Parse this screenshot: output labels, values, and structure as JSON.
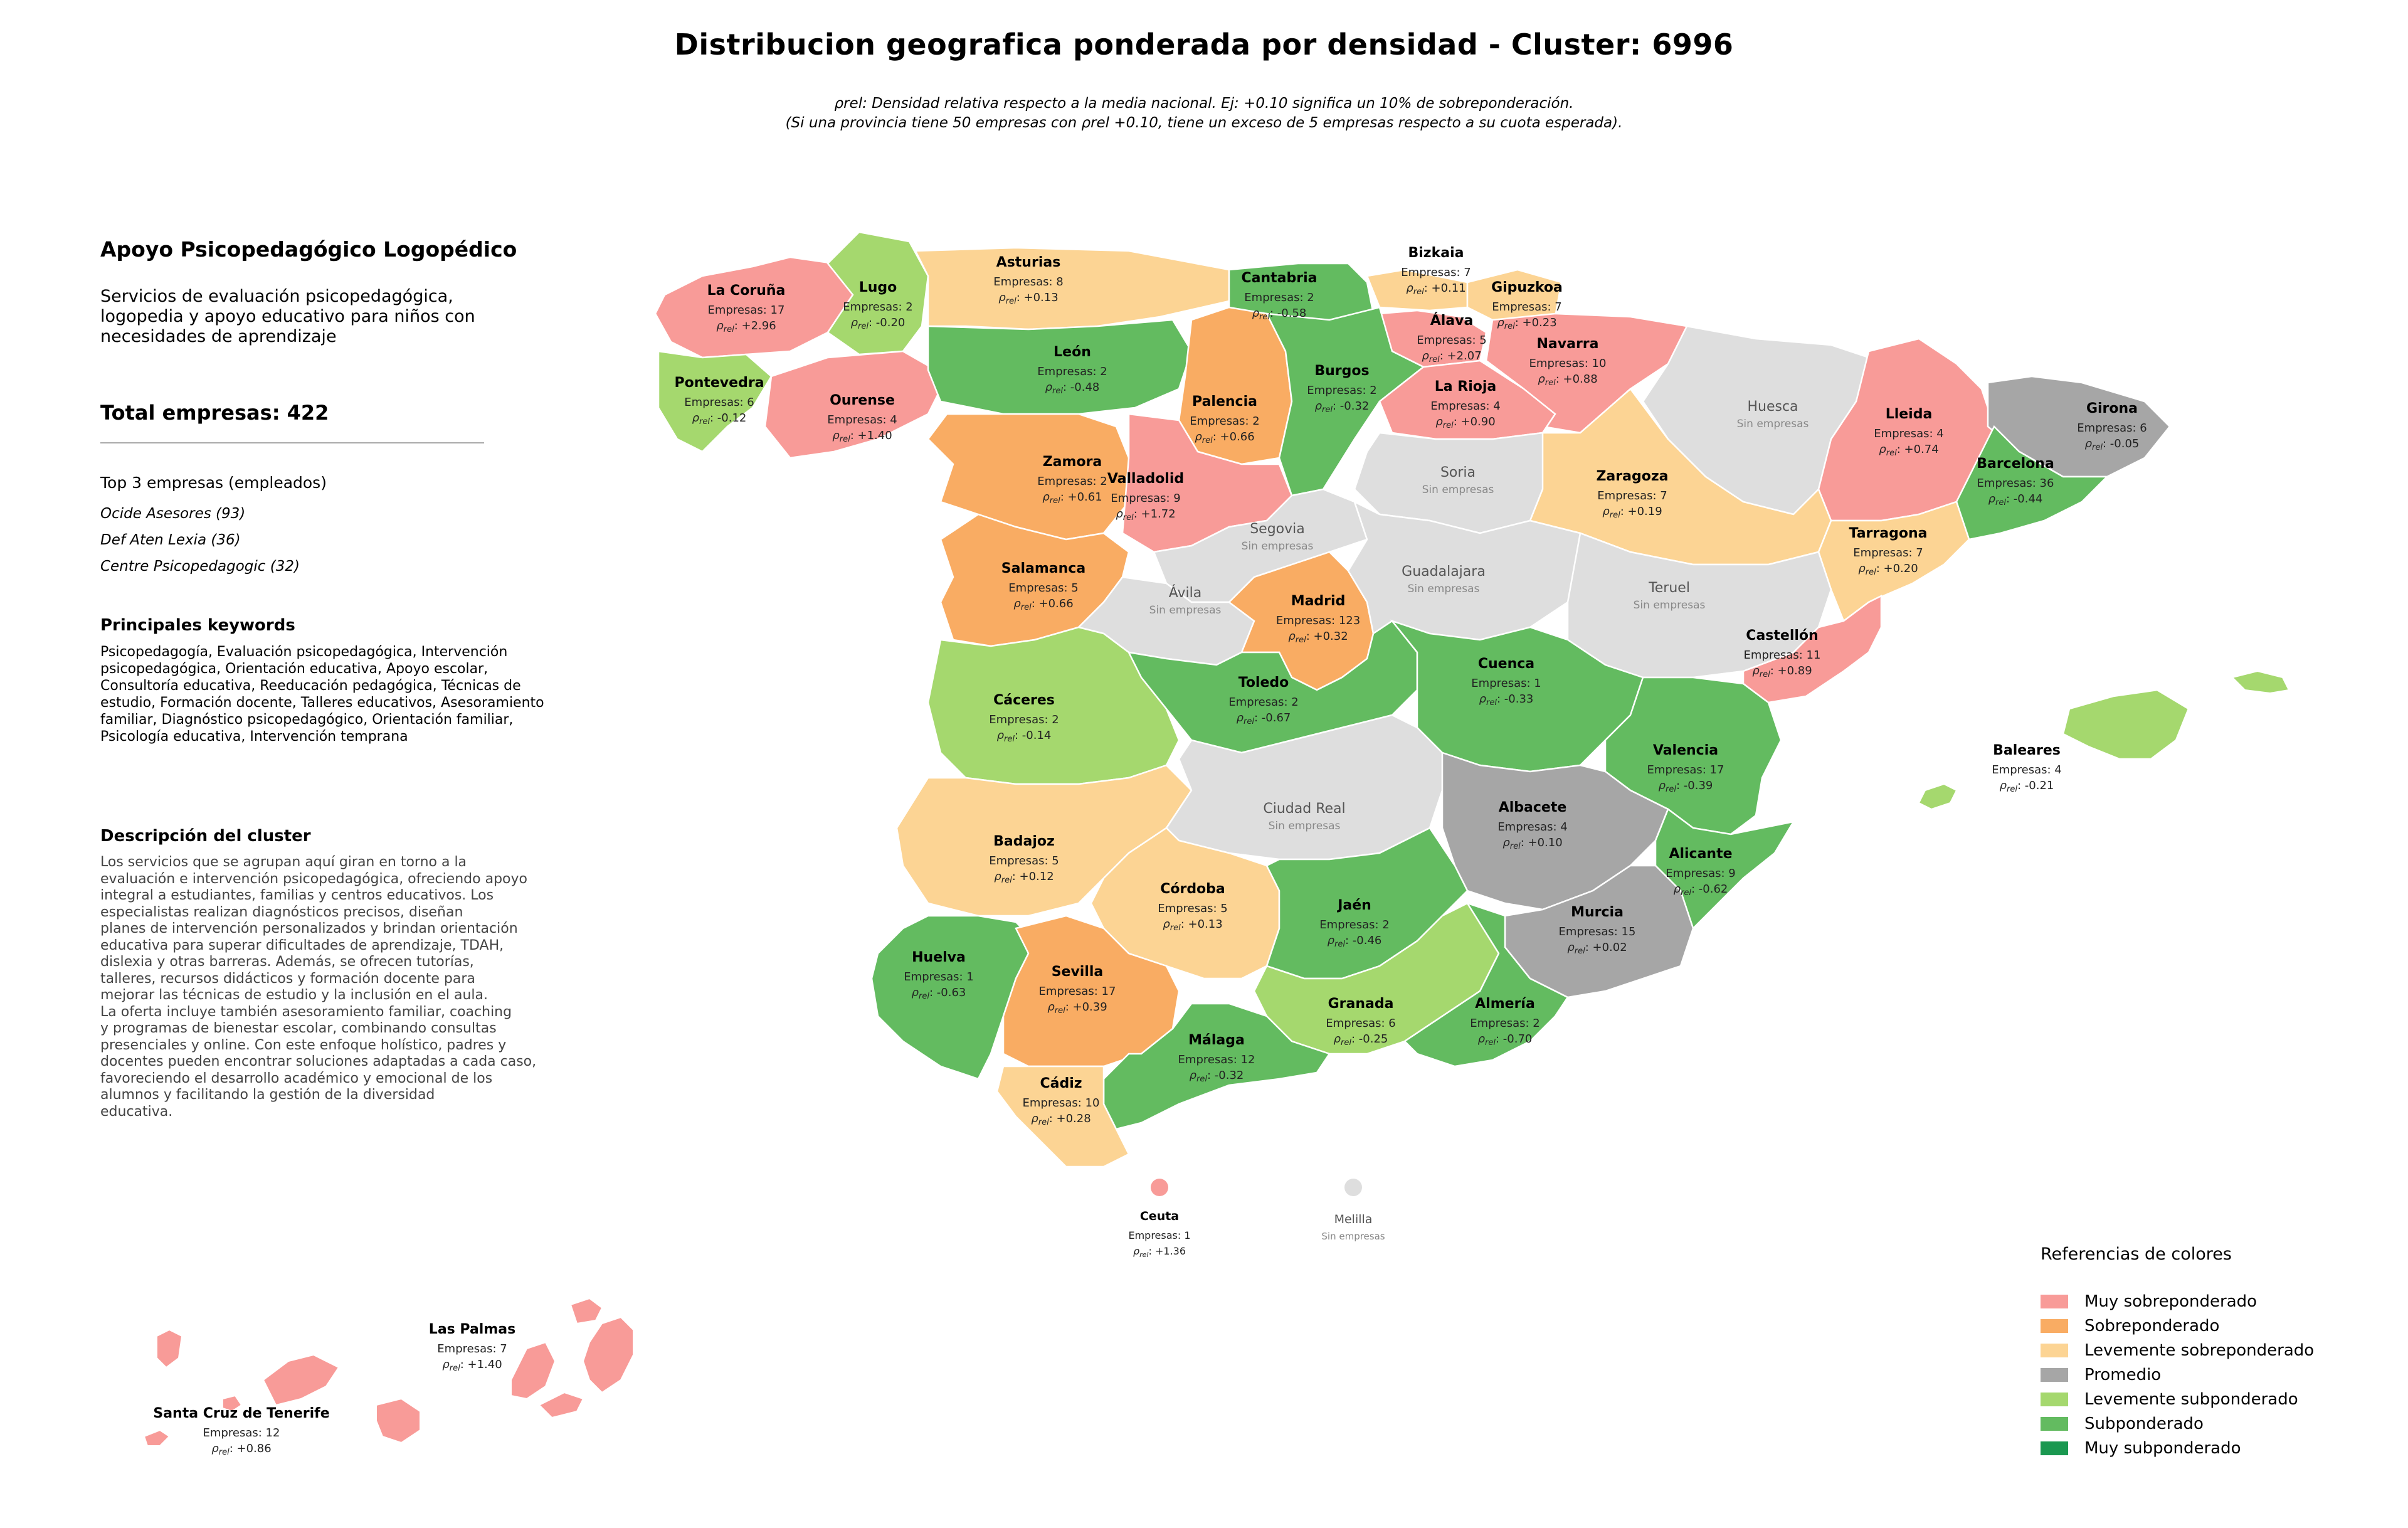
{
  "title": "Distribucion geografica ponderada por densidad - Cluster: 6996",
  "subtitle": {
    "line1": "ρrel: Densidad relativa respecto a la media nacional. Ej: +0.10 significa un 10% de sobreponderación.",
    "line2": "(Si una provincia tiene 50 empresas con ρrel +0.10, tiene un exceso de 5 empresas respecto a su cuota esperada)."
  },
  "cluster": {
    "name": "Apoyo Psicopedagógico Logopédico",
    "description_short": "Servicios de evaluación psicopedagógica, logopedia y apoyo educativo para niños con necesidades de aprendizaje",
    "total_label": "Total empresas: 422",
    "top3_title": "Top 3 empresas (empleados)",
    "top3": [
      "Ocide Asesores (93)",
      "Def Aten Lexia (36)",
      "Centre Psicopedagogic (32)"
    ],
    "keywords_title": "Principales keywords",
    "keywords": "Psicopedagogía, Evaluación psicopedagógica, Intervención psicopedagógica, Orientación educativa, Apoyo escolar, Consultoría educativa, Reeducación pedagógica, Técnicas de estudio, Formación docente, Talleres educativos, Asesoramiento familiar, Diagnóstico psicopedagógico, Orientación familiar, Psicología educativa, Intervención temprana",
    "description_title": "Descripción del cluster",
    "description": "Los servicios que se agrupan aquí giran en torno a la\nevaluación e intervención psicopedagógica, ofreciendo apoyo\nintegral a estudiantes, familias y centros educativos. Los\nespecialistas realizan diagnósticos precisos, diseñan\nplanes de intervención personalizados y brindan orientación\neducativa para superar dificultades de aprendizaje, TDAH,\ndislexia y otras barreras. Además, se ofrecen tutorías,\ntalleres, recursos didácticos y formación docente para\nmejorar las técnicas de estudio y la inclusión en el aula.\nLa oferta incluye también asesoramiento familiar, coaching\ny programas de bienestar escolar, combinando consultas\npresenciales y online. Con este enfoque holístico, padres y\ndocentes pueden encontrar soluciones adaptadas a cada caso,\nfavoreciendo el desarrollo académico y emocional de los\nalumnos y facilitando la gestión de la diversidad\neducativa."
  },
  "colors": {
    "muy_sobre": "#f89b98",
    "sobre": "#f9ac63",
    "leve_sobre": "#fcd494",
    "promedio": "#a6a6a6",
    "leve_sub": "#a5d86e",
    "sub": "#63bb60",
    "muy_sub": "#1a9850",
    "sin": "#dedede",
    "border": "#ffffff"
  },
  "legend": {
    "title": "Referencias de colores",
    "items": [
      {
        "label": "Muy sobreponderado",
        "cls": "muy_sobre"
      },
      {
        "label": "Sobreponderado",
        "cls": "sobre"
      },
      {
        "label": "Levemente sobreponderado",
        "cls": "leve_sobre"
      },
      {
        "label": "Promedio",
        "cls": "promedio"
      },
      {
        "label": "Levemente subponderado",
        "cls": "leve_sub"
      },
      {
        "label": "Subponderado",
        "cls": "sub"
      },
      {
        "label": "Muy subponderado",
        "cls": "muy_sub"
      }
    ]
  },
  "labels": {
    "empresas_prefix": "Empresas: ",
    "rho": "ρ",
    "rho_sub": "rel",
    "sin_empresas": "Sin empresas"
  },
  "provinces": [
    {
      "id": "la-coruna",
      "name": "La Coruña",
      "empresas": 17,
      "rho": "+2.96",
      "cls": "muy_sobre"
    },
    {
      "id": "lugo",
      "name": "Lugo",
      "empresas": 2,
      "rho": "-0.20",
      "cls": "leve_sub"
    },
    {
      "id": "asturias",
      "name": "Asturias",
      "empresas": 8,
      "rho": "+0.13",
      "cls": "leve_sobre"
    },
    {
      "id": "cantabria",
      "name": "Cantabria",
      "empresas": 2,
      "rho": "-0.58",
      "cls": "sub"
    },
    {
      "id": "bizkaia",
      "name": "Bizkaia",
      "empresas": 7,
      "rho": "+0.11",
      "cls": "leve_sobre"
    },
    {
      "id": "gipuzkoa",
      "name": "Gipuzkoa",
      "empresas": 7,
      "rho": "+0.23",
      "cls": "leve_sobre"
    },
    {
      "id": "alava",
      "name": "Álava",
      "empresas": 5,
      "rho": "+2.07",
      "cls": "muy_sobre"
    },
    {
      "id": "navarra",
      "name": "Navarra",
      "empresas": 10,
      "rho": "+0.88",
      "cls": "muy_sobre"
    },
    {
      "id": "pontevedra",
      "name": "Pontevedra",
      "empresas": 6,
      "rho": "-0.12",
      "cls": "leve_sub"
    },
    {
      "id": "ourense",
      "name": "Ourense",
      "empresas": 4,
      "rho": "+1.40",
      "cls": "muy_sobre"
    },
    {
      "id": "leon",
      "name": "León",
      "empresas": 2,
      "rho": "-0.48",
      "cls": "sub"
    },
    {
      "id": "palencia",
      "name": "Palencia",
      "empresas": 2,
      "rho": "+0.66",
      "cls": "sobre"
    },
    {
      "id": "burgos",
      "name": "Burgos",
      "empresas": 2,
      "rho": "-0.32",
      "cls": "sub"
    },
    {
      "id": "la-rioja",
      "name": "La Rioja",
      "empresas": 4,
      "rho": "+0.90",
      "cls": "muy_sobre"
    },
    {
      "id": "huesca",
      "name": "Huesca",
      "empresas": null,
      "rho": null,
      "cls": "sin"
    },
    {
      "id": "lleida",
      "name": "Lleida",
      "empresas": 4,
      "rho": "+0.74",
      "cls": "muy_sobre"
    },
    {
      "id": "girona",
      "name": "Girona",
      "empresas": 6,
      "rho": "-0.05",
      "cls": "promedio"
    },
    {
      "id": "barcelona",
      "name": "Barcelona",
      "empresas": 36,
      "rho": "-0.44",
      "cls": "sub"
    },
    {
      "id": "zamora",
      "name": "Zamora",
      "empresas": 2,
      "rho": "+0.61",
      "cls": "sobre"
    },
    {
      "id": "valladolid",
      "name": "Valladolid",
      "empresas": 9,
      "rho": "+1.72",
      "cls": "muy_sobre"
    },
    {
      "id": "soria",
      "name": "Soria",
      "empresas": null,
      "rho": null,
      "cls": "sin"
    },
    {
      "id": "zaragoza",
      "name": "Zaragoza",
      "empresas": 7,
      "rho": "+0.19",
      "cls": "leve_sobre"
    },
    {
      "id": "tarragona",
      "name": "Tarragona",
      "empresas": 7,
      "rho": "+0.20",
      "cls": "leve_sobre"
    },
    {
      "id": "salamanca",
      "name": "Salamanca",
      "empresas": 5,
      "rho": "+0.66",
      "cls": "sobre"
    },
    {
      "id": "segovia",
      "name": "Segovia",
      "empresas": null,
      "rho": null,
      "cls": "sin"
    },
    {
      "id": "avila",
      "name": "Ávila",
      "empresas": null,
      "rho": null,
      "cls": "sin"
    },
    {
      "id": "madrid",
      "name": "Madrid",
      "empresas": 123,
      "rho": "+0.32",
      "cls": "sobre"
    },
    {
      "id": "guadalajara",
      "name": "Guadalajara",
      "empresas": null,
      "rho": null,
      "cls": "sin"
    },
    {
      "id": "teruel",
      "name": "Teruel",
      "empresas": null,
      "rho": null,
      "cls": "sin"
    },
    {
      "id": "castellon",
      "name": "Castellón",
      "empresas": 11,
      "rho": "+0.89",
      "cls": "muy_sobre"
    },
    {
      "id": "caceres",
      "name": "Cáceres",
      "empresas": 2,
      "rho": "-0.14",
      "cls": "leve_sub"
    },
    {
      "id": "toledo",
      "name": "Toledo",
      "empresas": 2,
      "rho": "-0.67",
      "cls": "sub"
    },
    {
      "id": "cuenca",
      "name": "Cuenca",
      "empresas": 1,
      "rho": "-0.33",
      "cls": "sub"
    },
    {
      "id": "valencia",
      "name": "Valencia",
      "empresas": 17,
      "rho": "-0.39",
      "cls": "sub"
    },
    {
      "id": "baleares",
      "name": "Baleares",
      "empresas": 4,
      "rho": "-0.21",
      "cls": "leve_sub"
    },
    {
      "id": "badajoz",
      "name": "Badajoz",
      "empresas": 5,
      "rho": "+0.12",
      "cls": "leve_sobre"
    },
    {
      "id": "ciudad-real",
      "name": "Ciudad Real",
      "empresas": null,
      "rho": null,
      "cls": "sin"
    },
    {
      "id": "albacete",
      "name": "Albacete",
      "empresas": 4,
      "rho": "+0.10",
      "cls": "promedio"
    },
    {
      "id": "alicante",
      "name": "Alicante",
      "empresas": 9,
      "rho": "-0.62",
      "cls": "sub"
    },
    {
      "id": "cordoba",
      "name": "Córdoba",
      "empresas": 5,
      "rho": "+0.13",
      "cls": "leve_sobre"
    },
    {
      "id": "jaen",
      "name": "Jaén",
      "empresas": 2,
      "rho": "-0.46",
      "cls": "sub"
    },
    {
      "id": "murcia",
      "name": "Murcia",
      "empresas": 15,
      "rho": "+0.02",
      "cls": "promedio"
    },
    {
      "id": "huelva",
      "name": "Huelva",
      "empresas": 1,
      "rho": "-0.63",
      "cls": "sub"
    },
    {
      "id": "sevilla",
      "name": "Sevilla",
      "empresas": 17,
      "rho": "+0.39",
      "cls": "sobre"
    },
    {
      "id": "granada",
      "name": "Granada",
      "empresas": 6,
      "rho": "-0.25",
      "cls": "leve_sub"
    },
    {
      "id": "almeria",
      "name": "Almería",
      "empresas": 2,
      "rho": "-0.70",
      "cls": "sub"
    },
    {
      "id": "malaga",
      "name": "Málaga",
      "empresas": 12,
      "rho": "-0.32",
      "cls": "sub"
    },
    {
      "id": "cadiz",
      "name": "Cádiz",
      "empresas": 10,
      "rho": "+0.28",
      "cls": "leve_sobre"
    },
    {
      "id": "ceuta",
      "name": "Ceuta",
      "empresas": 1,
      "rho": "+1.36",
      "cls": "muy_sobre"
    },
    {
      "id": "melilla",
      "name": "Melilla",
      "empresas": null,
      "rho": null,
      "cls": "sin"
    },
    {
      "id": "las-palmas",
      "name": "Las Palmas",
      "empresas": 7,
      "rho": "+1.40",
      "cls": "muy_sobre"
    },
    {
      "id": "santa-cruz",
      "name": "Santa Cruz de Tenerife",
      "empresas": 12,
      "rho": "+0.86",
      "cls": "muy_sobre"
    }
  ]
}
